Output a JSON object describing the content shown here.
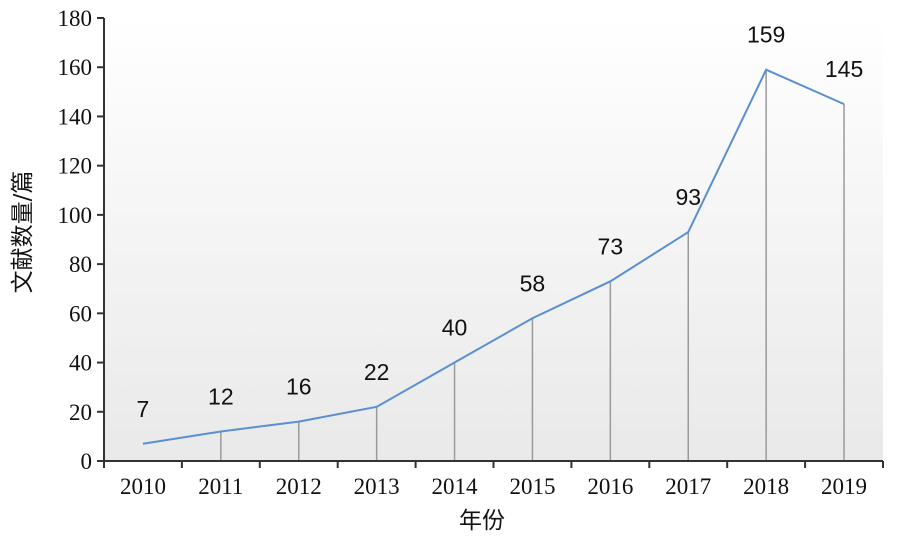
{
  "chart_data": {
    "type": "line",
    "title": "",
    "xlabel": "年份",
    "ylabel": "文献数量/篇",
    "x": [
      "2010",
      "2011",
      "2012",
      "2013",
      "2014",
      "2015",
      "2016",
      "2017",
      "2018",
      "2019"
    ],
    "series": [
      {
        "values": [
          7,
          12,
          16,
          22,
          40,
          58,
          73,
          93,
          159,
          145
        ]
      }
    ],
    "ylim": [
      0,
      180
    ],
    "yticks": [
      "0",
      "20",
      "40",
      "60",
      "80",
      "100",
      "120",
      "140",
      "160",
      "180"
    ],
    "data_labels": [
      "7",
      "12",
      "16",
      "22",
      "40",
      "58",
      "73",
      "93",
      "159",
      "145"
    ],
    "drop_lines": true,
    "grid": false,
    "legend": "none",
    "colors": {
      "line": "#5b8fd0",
      "drop_line": "#9a9a9a",
      "axis": "#333333",
      "background_top": "#ffffff",
      "background_bottom": "#e9e9e9"
    }
  }
}
